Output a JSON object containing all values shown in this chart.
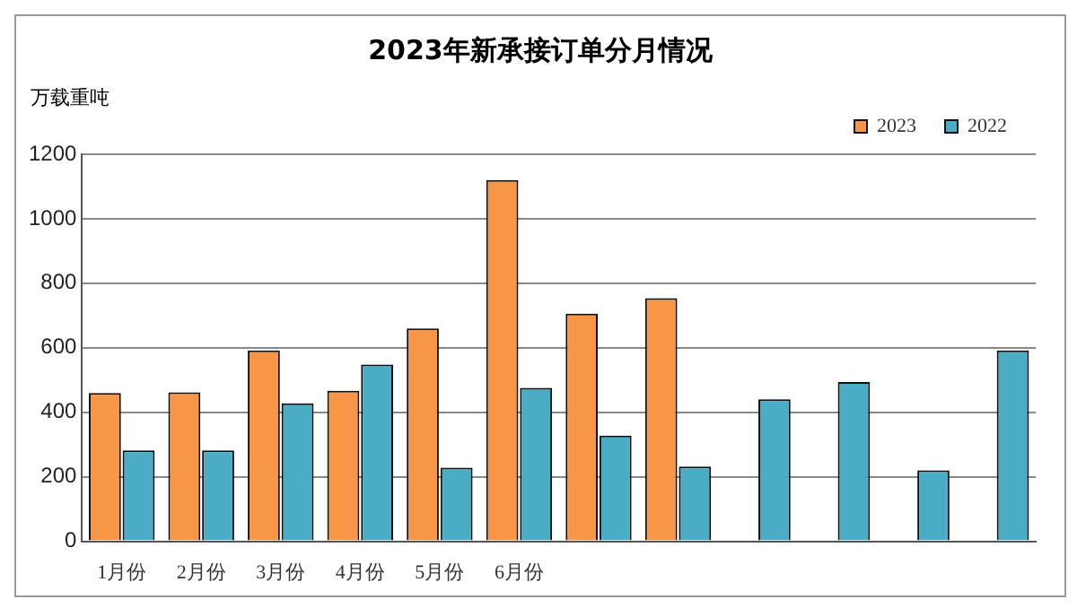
{
  "chart_data": {
    "type": "bar",
    "title": "2023年新承接订单分月情况",
    "ylabel": "万载重吨",
    "categories": [
      "1月份",
      "2月份",
      "3月份",
      "4月份",
      "5月份",
      "6月份",
      null,
      null,
      null,
      null,
      null,
      null
    ],
    "series": [
      {
        "name": "2023",
        "color": "#f79646",
        "values": [
          460,
          462,
          592,
          467,
          660,
          1120,
          706,
          754,
          null,
          null,
          null,
          null
        ]
      },
      {
        "name": "2022",
        "color": "#4bacc6",
        "values": [
          282,
          282,
          428,
          548,
          228,
          476,
          328,
          232,
          440,
          494,
          220,
          592
        ]
      }
    ],
    "ylim": [
      0,
      1200
    ],
    "yticks": [
      0,
      200,
      400,
      600,
      800,
      1000,
      1200
    ],
    "grid": "y",
    "legend": "top"
  }
}
